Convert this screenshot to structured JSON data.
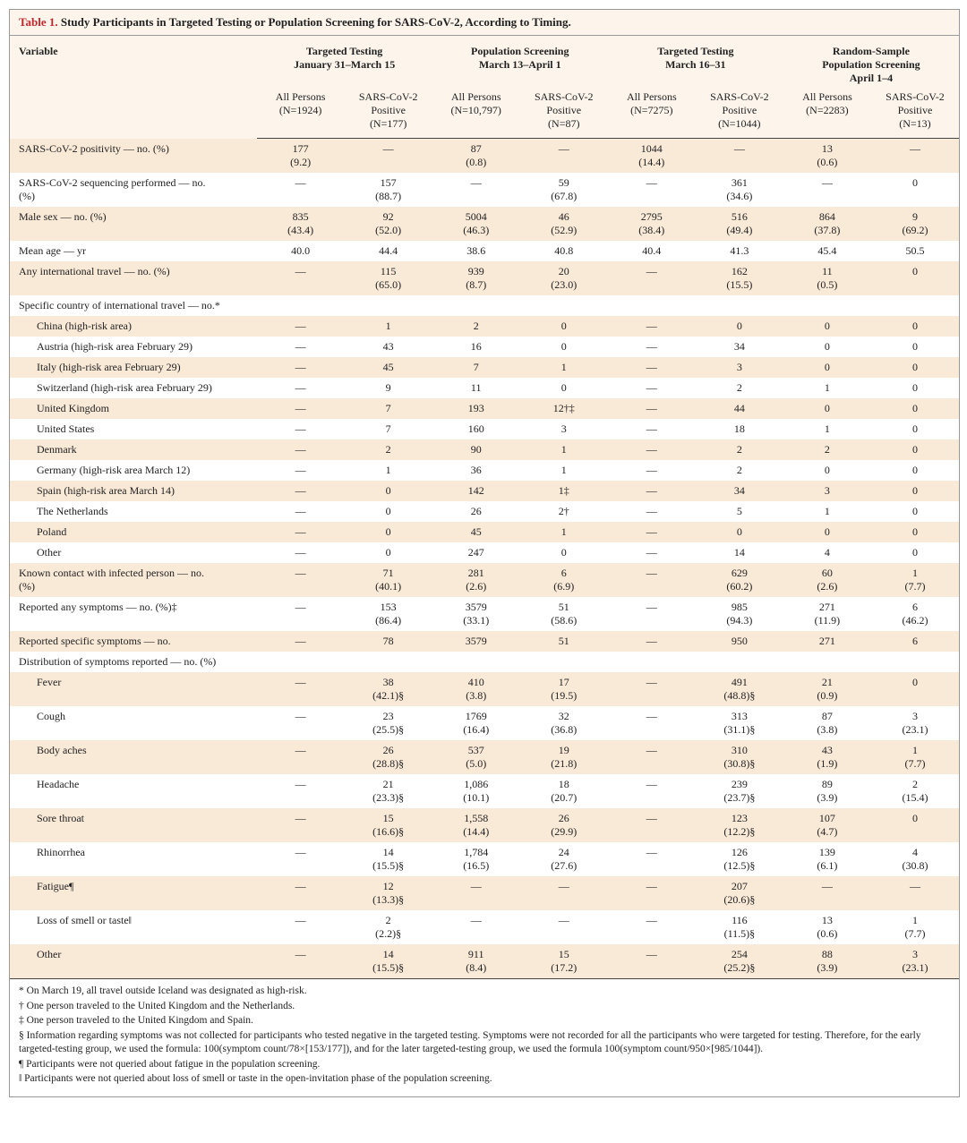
{
  "title_label": "Table 1.",
  "title_text": "Study Participants in Targeted Testing or Population Screening for SARS-CoV-2, According to Timing.",
  "var_header": "Variable",
  "groups": [
    {
      "label": "Targeted Testing\nJanuary 31–March 15",
      "all": "All Persons\n(N=1924)",
      "pos": "SARS-CoV-2\nPositive\n(N=177)"
    },
    {
      "label": "Population Screening\nMarch 13–April 1",
      "all": "All Persons\n(N=10,797)",
      "pos": "SARS-CoV-2\nPositive\n(N=87)"
    },
    {
      "label": "Targeted Testing\nMarch 16–31",
      "all": "All Persons\n(N=7275)",
      "pos": "SARS-CoV-2\nPositive\n(N=1044)"
    },
    {
      "label": "Random-Sample\nPopulation Screening\nApril 1–4",
      "all": "All Persons\n(N=2283)",
      "pos": "SARS-CoV-2\nPositive\n(N=13)"
    }
  ],
  "rows": [
    {
      "label": "SARS-CoV-2 positivity — no. (%)",
      "indent": 0,
      "cells": [
        "177\n(9.2)",
        "—",
        "87\n(0.8)",
        "—",
        "1044\n(14.4)",
        "—",
        "13\n(0.6)",
        "—"
      ]
    },
    {
      "label": "SARS-CoV-2 sequencing performed — no.\n        (%)",
      "indent": 0,
      "cells": [
        "—",
        "157\n(88.7)",
        "—",
        "59\n(67.8)",
        "—",
        "361\n(34.6)",
        "—",
        "0"
      ]
    },
    {
      "label": "Male sex — no. (%)",
      "indent": 0,
      "cells": [
        "835\n(43.4)",
        "92\n(52.0)",
        "5004\n(46.3)",
        "46\n(52.9)",
        "2795\n(38.4)",
        "516\n(49.4)",
        "864\n(37.8)",
        "9\n(69.2)"
      ]
    },
    {
      "label": "Mean age — yr",
      "indent": 0,
      "cells": [
        "40.0",
        "44.4",
        "38.6",
        "40.8",
        "40.4",
        "41.3",
        "45.4",
        "50.5"
      ]
    },
    {
      "label": "Any international travel — no. (%)",
      "indent": 0,
      "cells": [
        "—",
        "115\n(65.0)",
        "939\n(8.7)",
        "20\n(23.0)",
        "—",
        "162\n(15.5)",
        "11\n(0.5)",
        "0"
      ]
    },
    {
      "label": "Specific country of international travel — no.*",
      "indent": 0,
      "cells": [
        "",
        "",
        "",
        "",
        "",
        "",
        "",
        ""
      ]
    },
    {
      "label": "China (high-risk area)",
      "indent": 1,
      "cells": [
        "—",
        "1",
        "2",
        "0",
        "—",
        "0",
        "0",
        "0"
      ]
    },
    {
      "label": "Austria (high-risk area February 29)",
      "indent": 1,
      "cells": [
        "—",
        "43",
        "16",
        "0",
        "—",
        "34",
        "0",
        "0"
      ]
    },
    {
      "label": "Italy (high-risk area February 29)",
      "indent": 1,
      "cells": [
        "—",
        "45",
        "7",
        "1",
        "—",
        "3",
        "0",
        "0"
      ]
    },
    {
      "label": "Switzerland (high-risk area February 29)",
      "indent": 1,
      "cells": [
        "—",
        "9",
        "11",
        "0",
        "—",
        "2",
        "1",
        "0"
      ]
    },
    {
      "label": "United Kingdom",
      "indent": 1,
      "cells": [
        "—",
        "7",
        "193",
        "12†‡",
        "—",
        "44",
        "0",
        "0"
      ]
    },
    {
      "label": "United States",
      "indent": 1,
      "cells": [
        "—",
        "7",
        "160",
        "3",
        "—",
        "18",
        "1",
        "0"
      ]
    },
    {
      "label": "Denmark",
      "indent": 1,
      "cells": [
        "—",
        "2",
        "90",
        "1",
        "—",
        "2",
        "2",
        "0"
      ]
    },
    {
      "label": "Germany (high-risk area March 12)",
      "indent": 1,
      "cells": [
        "—",
        "1",
        "36",
        "1",
        "—",
        "2",
        "0",
        "0"
      ]
    },
    {
      "label": "Spain (high-risk area March 14)",
      "indent": 1,
      "cells": [
        "—",
        "0",
        "142",
        "1‡",
        "—",
        "34",
        "3",
        "0"
      ]
    },
    {
      "label": "The Netherlands",
      "indent": 1,
      "cells": [
        "—",
        "0",
        "26",
        "2†",
        "—",
        "5",
        "1",
        "0"
      ]
    },
    {
      "label": "Poland",
      "indent": 1,
      "cells": [
        "—",
        "0",
        "45",
        "1",
        "—",
        "0",
        "0",
        "0"
      ]
    },
    {
      "label": "Other",
      "indent": 1,
      "cells": [
        "—",
        "0",
        "247",
        "0",
        "—",
        "14",
        "4",
        "0"
      ]
    },
    {
      "label": "Known contact with infected person — no.\n        (%)",
      "indent": 0,
      "cells": [
        "—",
        "71\n(40.1)",
        "281\n(2.6)",
        "6\n(6.9)",
        "—",
        "629\n(60.2)",
        "60\n(2.6)",
        "1\n(7.7)"
      ]
    },
    {
      "label": "Reported any symptoms — no. (%)‡",
      "indent": 0,
      "cells": [
        "—",
        "153\n(86.4)",
        "3579\n(33.1)",
        "51\n(58.6)",
        "—",
        "985\n(94.3)",
        "271\n(11.9)",
        "6\n(46.2)"
      ]
    },
    {
      "label": "Reported specific symptoms — no.",
      "indent": 0,
      "cells": [
        "—",
        "78",
        "3579",
        "51",
        "—",
        "950",
        "271",
        "6"
      ]
    },
    {
      "label": "Distribution of symptoms reported — no. (%)",
      "indent": 0,
      "cells": [
        "",
        "",
        "",
        "",
        "",
        "",
        "",
        ""
      ]
    },
    {
      "label": "Fever",
      "indent": 1,
      "cells": [
        "—",
        "38\n(42.1)§",
        "410\n(3.8)",
        "17\n(19.5)",
        "—",
        "491\n(48.8)§",
        "21\n(0.9)",
        "0"
      ]
    },
    {
      "label": "Cough",
      "indent": 1,
      "cells": [
        "—",
        "23\n(25.5)§",
        "1769\n(16.4)",
        "32\n(36.8)",
        "—",
        "313\n(31.1)§",
        "87\n(3.8)",
        "3\n(23.1)"
      ]
    },
    {
      "label": "Body aches",
      "indent": 1,
      "cells": [
        "—",
        "26\n(28.8)§",
        "537\n(5.0)",
        "19\n(21.8)",
        "—",
        "310\n(30.8)§",
        "43\n(1.9)",
        "1\n(7.7)"
      ]
    },
    {
      "label": "Headache",
      "indent": 1,
      "cells": [
        "—",
        "21\n(23.3)§",
        "1,086\n(10.1)",
        "18\n(20.7)",
        "—",
        "239\n(23.7)§",
        "89\n(3.9)",
        "2\n(15.4)"
      ]
    },
    {
      "label": "Sore throat",
      "indent": 1,
      "cells": [
        "—",
        "15\n(16.6)§",
        "1,558\n(14.4)",
        "26\n(29.9)",
        "—",
        "123\n(12.2)§",
        "107\n(4.7)",
        "0"
      ]
    },
    {
      "label": "Rhinorrhea",
      "indent": 1,
      "cells": [
        "—",
        "14\n(15.5)§",
        "1,784\n(16.5)",
        "24\n(27.6)",
        "—",
        "126\n(12.5)§",
        "139\n(6.1)",
        "4\n(30.8)"
      ]
    },
    {
      "label": "Fatigue¶",
      "indent": 1,
      "cells": [
        "—",
        "12\n(13.3)§",
        "—",
        "—",
        "—",
        "207\n(20.6)§",
        "—",
        "—"
      ]
    },
    {
      "label": "Loss of smell or taste‖",
      "indent": 1,
      "cells": [
        "—",
        "2\n(2.2)§",
        "—",
        "—",
        "—",
        "116\n(11.5)§",
        "13\n(0.6)",
        "1\n(7.7)"
      ]
    },
    {
      "label": "Other",
      "indent": 1,
      "cells": [
        "—",
        "14\n(15.5)§",
        "911\n(8.4)",
        "15\n(17.2)",
        "—",
        "254\n(25.2)§",
        "88\n(3.9)",
        "3\n(23.1)"
      ]
    }
  ],
  "footnotes": [
    "* On March 19, all travel outside Iceland was designated as high-risk.",
    "† One person traveled to the United Kingdom and the Netherlands.",
    "‡ One person traveled to the United Kingdom and Spain.",
    "§ Information regarding symptoms was not collected for participants who tested negative in the targeted testing. Symptoms were not recorded for all the participants who were targeted for testing. Therefore, for the early targeted-testing group, we used the formula: 100(symptom count/78×[153/177]), and for the later targeted-testing group, we used the formula 100(symptom count/950×[985/1044]).",
    "¶ Participants were not queried about fatigue in the population screening.",
    "‖ Participants were not queried about loss of smell or taste in the open-invitation phase of the population screening."
  ]
}
